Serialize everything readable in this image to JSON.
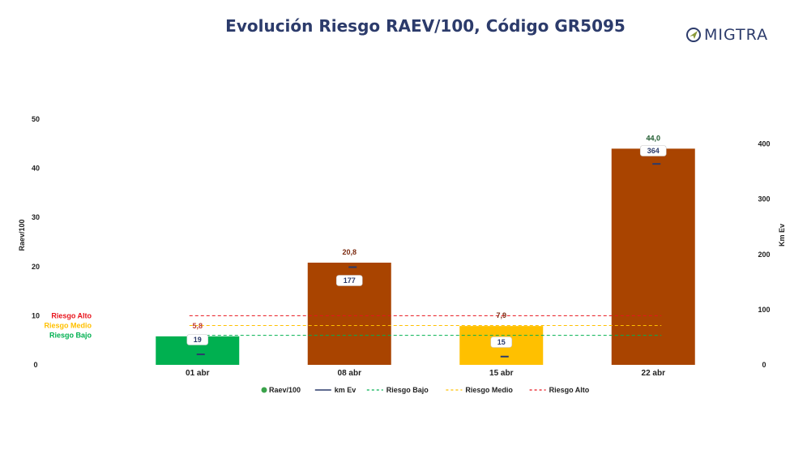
{
  "header": {
    "title": "Evolución Riesgo RAEV/100, Código GR5095"
  },
  "logo": {
    "text": "MIGTRA",
    "icon": "compass-icon",
    "color": "#2c3b6b",
    "accent": "#8a9a3a"
  },
  "chart_data": {
    "type": "bar",
    "categories": [
      "01 abr",
      "08 abr",
      "15 abr",
      "22 abr"
    ],
    "series": [
      {
        "name": "Raev/100",
        "values": [
          5.8,
          20.8,
          7.9,
          44.0
        ],
        "value_labels": [
          "5,8",
          "20,8",
          "7,9",
          "44,0"
        ],
        "bar_colors": [
          "#00b050",
          "#a94400",
          "#ffc000",
          "#a94400"
        ],
        "label_colors": [
          "#c0392b",
          "#7b2a10",
          "#7b2a10",
          "#1e5a2e"
        ],
        "axis": "left"
      },
      {
        "name": "km Ev",
        "values": [
          19,
          177,
          15,
          364
        ],
        "value_labels": [
          "19",
          "177",
          "15",
          "364"
        ],
        "axis": "right",
        "color": "#2c3b6b"
      }
    ],
    "thresholds": [
      {
        "name": "Riesgo Bajo",
        "label": "Riesgo Bajo",
        "value": 6,
        "color": "#00b050"
      },
      {
        "name": "Riesgo Medio",
        "label": "Riesgo Medio",
        "value": 8,
        "color": "#ffc000"
      },
      {
        "name": "Riesgo Alto",
        "label": "Riesgo Alto",
        "value": 10,
        "color": "#e8141c"
      }
    ],
    "ylabel": "Raev/100",
    "y2label": "Km Ev",
    "ylim": [
      0,
      50
    ],
    "y2lim": [
      0,
      445
    ],
    "yticks": [
      0,
      10,
      20,
      30,
      40,
      50
    ],
    "y2ticks": [
      0,
      100,
      200,
      300,
      400
    ],
    "legend": {
      "placement": "bottom",
      "items": [
        {
          "label": "Raev/100",
          "kind": "dot",
          "color": "#3aa34a"
        },
        {
          "label": "km Ev",
          "kind": "line",
          "color": "#2c3b6b"
        },
        {
          "label": "Riesgo Bajo",
          "kind": "dash",
          "color": "#00b050"
        },
        {
          "label": "Riesgo Medio",
          "kind": "dash",
          "color": "#ffc000"
        },
        {
          "label": "Riesgo Alto",
          "kind": "dash",
          "color": "#e8141c"
        }
      ]
    },
    "grid": false
  }
}
